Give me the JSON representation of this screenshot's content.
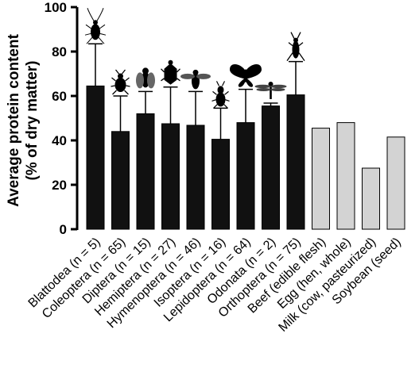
{
  "chart_data": {
    "type": "bar",
    "ylabel_line1": "Average protein content",
    "ylabel_line2": "(% of dry matter)",
    "ylim": [
      0,
      100
    ],
    "yticks": [
      "0",
      "20",
      "40",
      "60",
      "80",
      "100"
    ],
    "grid": false,
    "categories": [
      "Blattodea (n = 5)",
      "Coleoptera (n = 65)",
      "Diptera (n = 15)",
      "Hemiptera (n = 27)",
      "Hymenoptera (n = 46)",
      "Isoptera (n = 16)",
      "Lepidoptera (n = 64)",
      "Odonata (n = 2)",
      "Orthoptera (n = 75)",
      "Beef (edible flesh)",
      "Egg (hen, whole)",
      "Milk (cow, pasteurized)",
      "Soybean (seed)"
    ],
    "values": [
      64.5,
      44,
      52,
      47.5,
      46.8,
      40.5,
      48,
      55.5,
      60.5,
      45.5,
      48,
      27.5,
      41.5
    ],
    "error_upper": [
      83.5,
      60,
      62,
      64,
      62,
      54.5,
      63,
      56.8,
      75.5,
      null,
      null,
      null,
      null
    ],
    "groups": [
      "insect",
      "insect",
      "insect",
      "insect",
      "insect",
      "insect",
      "insect",
      "insect",
      "insect",
      "conventional",
      "conventional",
      "conventional",
      "conventional"
    ],
    "colors": {
      "insect": "#111111",
      "conventional": "#d3d3d3"
    },
    "icons": [
      "cockroach-icon",
      "beetle-icon",
      "fly-icon",
      "bug-icon",
      "bee-icon",
      "termite-icon",
      "butterfly-icon",
      "dragonfly-icon",
      "cricket-icon",
      "",
      "",
      "",
      ""
    ]
  }
}
